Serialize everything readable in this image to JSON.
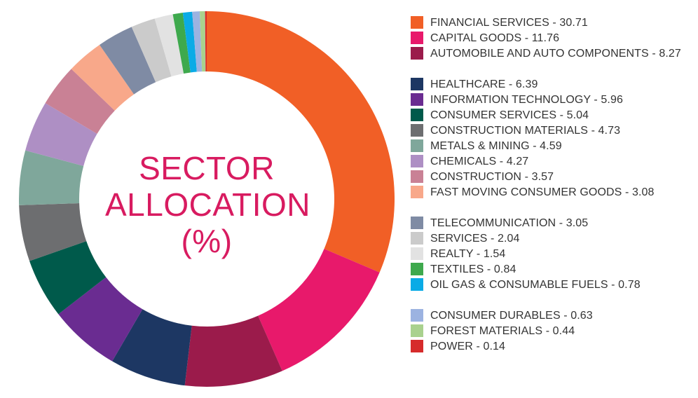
{
  "chart_data": {
    "type": "pie",
    "title_lines": [
      "SECTOR",
      "ALLOCATION",
      "(%)"
    ],
    "series": [
      {
        "label": "FINANCIAL SERVICES - 30.71",
        "name": "FINANCIAL SERVICES",
        "value": 30.71,
        "color": "#f15f26"
      },
      {
        "label": "CAPITAL GOODS - 11.76",
        "name": "CAPITAL GOODS",
        "value": 11.76,
        "color": "#e8196b"
      },
      {
        "label": "AUTOMOBILE AND AUTO COMPONENTS - 8.27",
        "name": "AUTOMOBILE AND AUTO COMPONENTS",
        "value": 8.27,
        "color": "#9b1b4b"
      },
      {
        "label": "HEALTHCARE - 6.39",
        "name": "HEALTHCARE",
        "value": 6.39,
        "color": "#1d3763"
      },
      {
        "label": "INFORMATION TECHNOLOGY - 5.96",
        "name": "INFORMATION TECHNOLOGY",
        "value": 5.96,
        "color": "#6a2c91"
      },
      {
        "label": "CONSUMER SERVICES - 5.04",
        "name": "CONSUMER SERVICES",
        "value": 5.04,
        "color": "#005a4b"
      },
      {
        "label": "CONSTRUCTION MATERIALS - 4.73",
        "name": "CONSTRUCTION MATERIALS",
        "value": 4.73,
        "color": "#6d6e70"
      },
      {
        "label": "METALS & MINING - 4.59",
        "name": "METALS & MINING",
        "value": 4.59,
        "color": "#7fa79b"
      },
      {
        "label": "CHEMICALS - 4.27",
        "name": "CHEMICALS",
        "value": 4.27,
        "color": "#ae8fc4"
      },
      {
        "label": "CONSTRUCTION - 3.57",
        "name": "CONSTRUCTION",
        "value": 3.57,
        "color": "#c98195"
      },
      {
        "label": "FAST MOVING CONSUMER GOODS - 3.08",
        "name": "FAST MOVING CONSUMER GOODS",
        "value": 3.08,
        "color": "#f8a88a"
      },
      {
        "label": "TELECOMMUNICATION - 3.05",
        "name": "TELECOMMUNICATION",
        "value": 3.05,
        "color": "#7f8ba4"
      },
      {
        "label": "SERVICES - 2.04",
        "name": "SERVICES",
        "value": 2.04,
        "color": "#cbcbcb"
      },
      {
        "label": "REALTY - 1.54",
        "name": "REALTY",
        "value": 1.54,
        "color": "#e2e2e2"
      },
      {
        "label": "TEXTILES - 0.84",
        "name": "TEXTILES",
        "value": 0.84,
        "color": "#3ea94d"
      },
      {
        "label": "OIL GAS & CONSUMABLE FUELS - 0.78",
        "name": "OIL GAS & CONSUMABLE FUELS",
        "value": 0.78,
        "color": "#0aabe6"
      },
      {
        "label": "CONSUMER DURABLES - 0.63",
        "name": "CONSUMER DURABLES",
        "value": 0.63,
        "color": "#9cb3e1"
      },
      {
        "label": "FOREST MATERIALS - 0.44",
        "name": "FOREST MATERIALS",
        "value": 0.44,
        "color": "#a9d18e"
      },
      {
        "label": "POWER - 0.14",
        "name": "POWER",
        "value": 0.14,
        "color": "#d62b2b"
      }
    ],
    "legend": "right",
    "donut": true
  }
}
